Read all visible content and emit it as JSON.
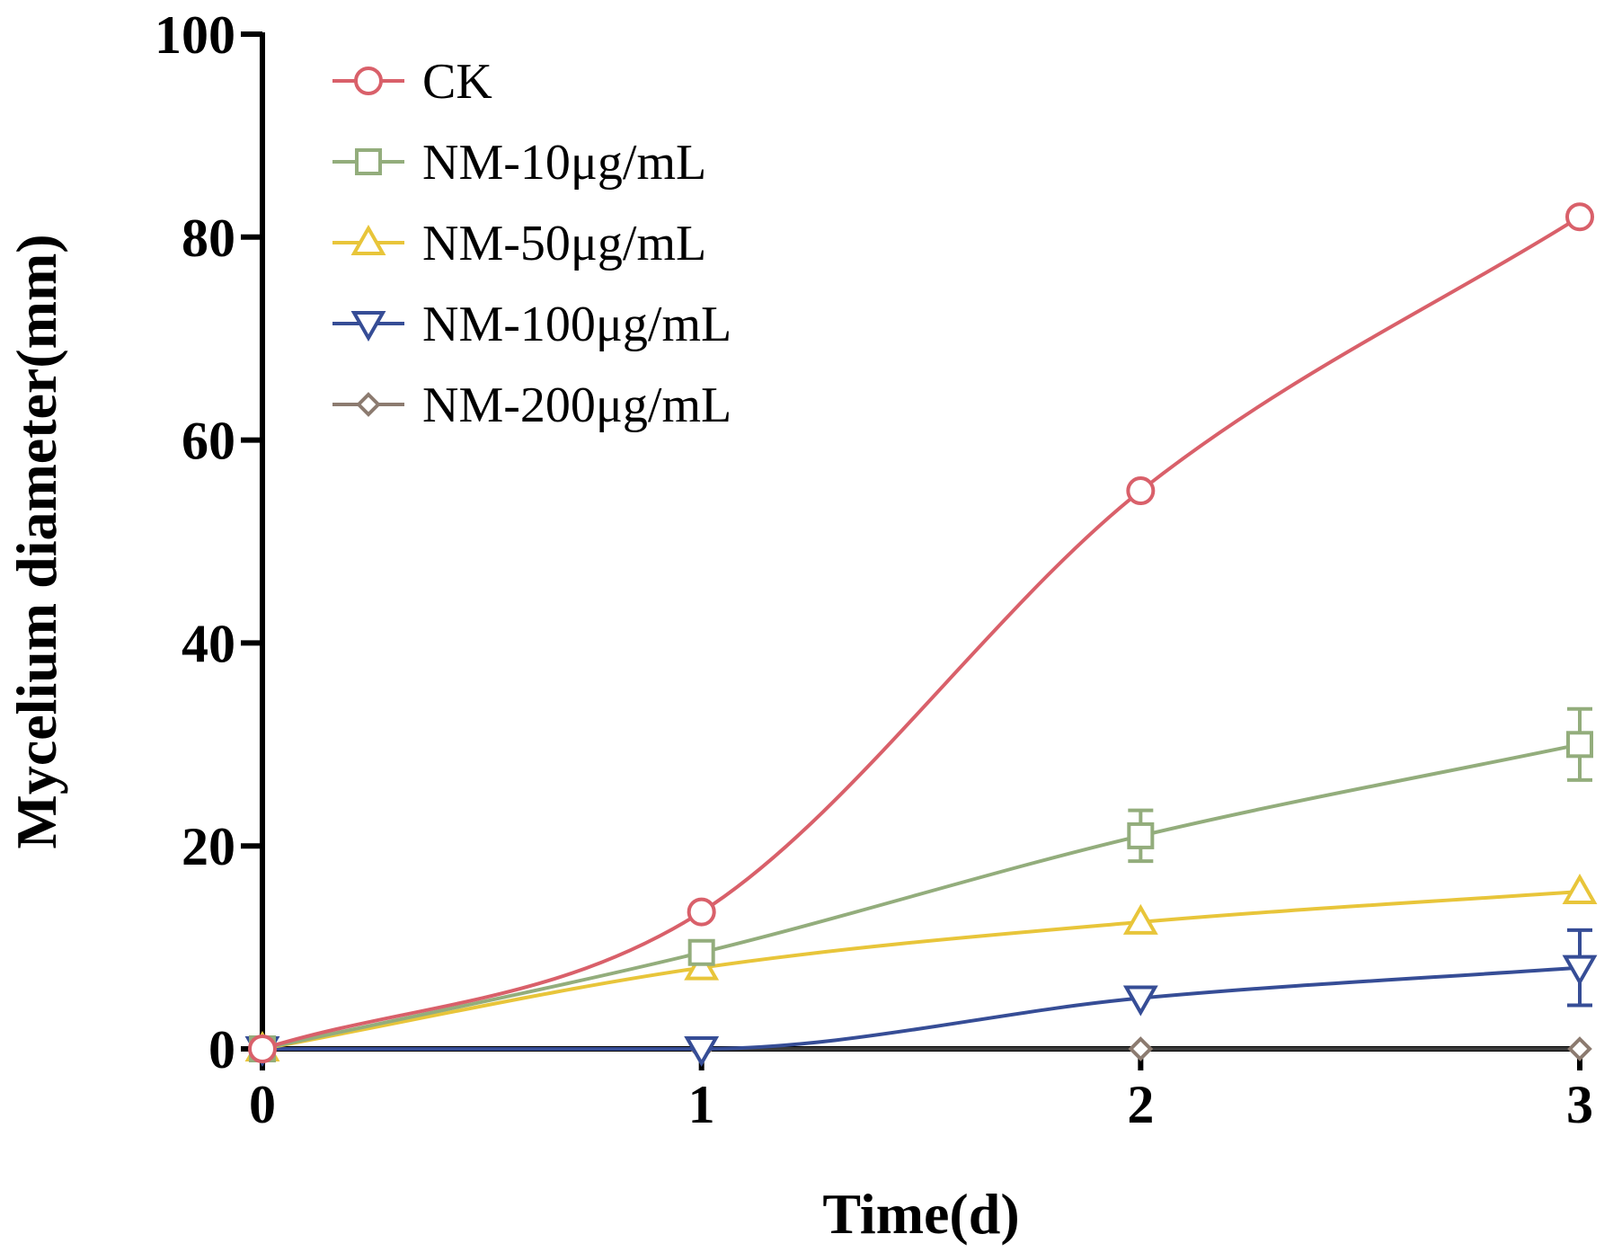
{
  "chart_data": {
    "type": "line",
    "xlabel": "Time(d)",
    "ylabel": "Mycelium diameter(mm)",
    "xlim": [
      0,
      3
    ],
    "ylim": [
      0,
      100
    ],
    "x_ticks": [
      "0",
      "1",
      "2",
      "3"
    ],
    "y_ticks": [
      "0",
      "20",
      "40",
      "60",
      "80",
      "100"
    ],
    "x": [
      0,
      1,
      2,
      3
    ],
    "legend_position": "top-left",
    "grid": false,
    "smooth": true,
    "series": [
      {
        "name": "CK",
        "values": [
          0,
          13.5,
          55,
          82
        ],
        "errors": [
          0,
          0,
          0,
          0
        ],
        "marker": "circle",
        "color": "#d9606a"
      },
      {
        "name": "NM-10μg/mL",
        "values": [
          0,
          9.5,
          21,
          30
        ],
        "errors": [
          0,
          0,
          2.5,
          3.5
        ],
        "marker": "square",
        "color": "#93ad7c"
      },
      {
        "name": "NM-50μg/mL",
        "values": [
          0,
          8,
          12.5,
          15.5
        ],
        "errors": [
          0,
          0,
          0,
          0
        ],
        "marker": "triangle-up",
        "color": "#e8c53a"
      },
      {
        "name": "NM-100μg/mL",
        "values": [
          0,
          0,
          5,
          8
        ],
        "errors": [
          0,
          0,
          0,
          3.7
        ],
        "marker": "triangle-down",
        "color": "#364d96"
      },
      {
        "name": "NM-200μg/mL",
        "values": [
          0,
          0,
          0,
          0
        ],
        "errors": [
          0,
          0,
          0,
          0
        ],
        "marker": "diamond",
        "color": "#8c7b70"
      }
    ]
  }
}
